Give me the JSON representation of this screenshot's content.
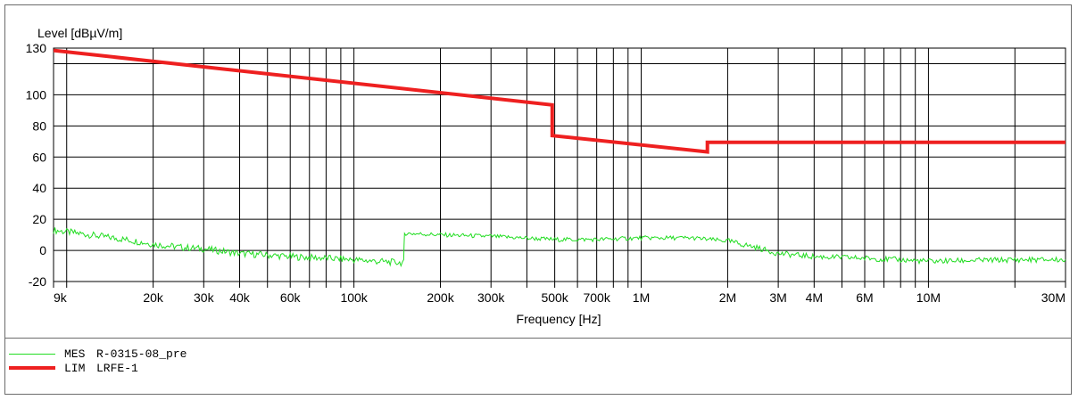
{
  "chart_data": {
    "type": "line",
    "ylabel": "Level [dBµV/m]",
    "xlabel": "Frequency [Hz]",
    "x_scale": "log",
    "xlim": [
      9000,
      30000000
    ],
    "ylim": [
      -20,
      130
    ],
    "grid": true,
    "y_ticks": [
      {
        "value": 130,
        "label": "130"
      },
      {
        "value": 100,
        "label": "100"
      },
      {
        "value": 80,
        "label": "80"
      },
      {
        "value": 60,
        "label": "60"
      },
      {
        "value": 40,
        "label": "40"
      },
      {
        "value": 20,
        "label": "20"
      },
      {
        "value": 0,
        "label": "0"
      },
      {
        "value": -20,
        "label": "-20"
      }
    ],
    "y_grid": [
      130,
      120,
      100,
      80,
      60,
      40,
      20,
      0,
      -20
    ],
    "x_ticks": [
      {
        "value": 9000,
        "label": "9k"
      },
      {
        "value": 20000,
        "label": "20k"
      },
      {
        "value": 30000,
        "label": "30k"
      },
      {
        "value": 40000,
        "label": "40k"
      },
      {
        "value": 60000,
        "label": "60k"
      },
      {
        "value": 100000,
        "label": "100k"
      },
      {
        "value": 200000,
        "label": "200k"
      },
      {
        "value": 300000,
        "label": "300k"
      },
      {
        "value": 500000,
        "label": "500k"
      },
      {
        "value": 700000,
        "label": "700k"
      },
      {
        "value": 1000000,
        "label": "1M"
      },
      {
        "value": 2000000,
        "label": "2M"
      },
      {
        "value": 3000000,
        "label": "3M"
      },
      {
        "value": 4000000,
        "label": "4M"
      },
      {
        "value": 6000000,
        "label": "6M"
      },
      {
        "value": 10000000,
        "label": "10M"
      },
      {
        "value": 30000000,
        "label": "30M"
      }
    ],
    "x_grid": [
      9000,
      10000,
      20000,
      30000,
      40000,
      50000,
      60000,
      70000,
      80000,
      90000,
      100000,
      200000,
      300000,
      400000,
      500000,
      600000,
      700000,
      800000,
      900000,
      1000000,
      2000000,
      3000000,
      4000000,
      5000000,
      6000000,
      7000000,
      8000000,
      9000000,
      10000000,
      20000000,
      30000000
    ],
    "series": [
      {
        "name": "MES",
        "color": "#22dd22",
        "points": [
          [
            9000,
            13
          ],
          [
            12000,
            10
          ],
          [
            16000,
            7
          ],
          [
            20000,
            4
          ],
          [
            25000,
            2
          ],
          [
            30000,
            1
          ],
          [
            40000,
            -2
          ],
          [
            50000,
            -3
          ],
          [
            60000,
            -4
          ],
          [
            80000,
            -5
          ],
          [
            100000,
            -6
          ],
          [
            120000,
            -7
          ],
          [
            149000,
            -8
          ],
          [
            150000,
            11
          ],
          [
            200000,
            10
          ],
          [
            300000,
            9
          ],
          [
            500000,
            7
          ],
          [
            700000,
            7
          ],
          [
            1000000,
            8
          ],
          [
            1500000,
            8
          ],
          [
            2000000,
            6
          ],
          [
            2500000,
            2
          ],
          [
            3000000,
            -2
          ],
          [
            4000000,
            -4
          ],
          [
            6000000,
            -5
          ],
          [
            10000000,
            -7
          ],
          [
            20000000,
            -6
          ],
          [
            30000000,
            -6
          ]
        ]
      },
      {
        "name": "LIM",
        "color": "#ee2020",
        "points": [
          [
            9000,
            128.5
          ],
          [
            490000,
            93.5
          ],
          [
            490000,
            73.8
          ],
          [
            1700000,
            63.3
          ],
          [
            1700000,
            69.5
          ],
          [
            30000000,
            69.5
          ]
        ]
      }
    ]
  },
  "legend": [
    {
      "name": "MES",
      "label": "R-0315-08_pre",
      "color": "#22dd22"
    },
    {
      "name": "LIM",
      "label": "LRFE-1",
      "color": "#ee2020"
    }
  ]
}
